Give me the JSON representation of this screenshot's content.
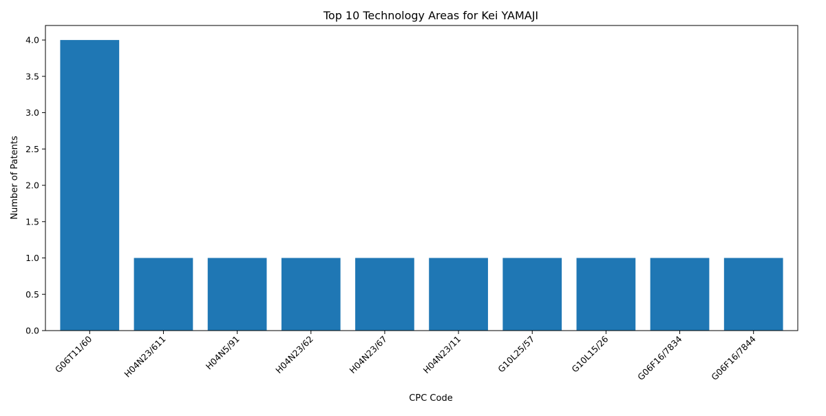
{
  "chart_data": {
    "type": "bar",
    "title": "Top 10 Technology Areas for Kei YAMAJI",
    "xlabel": "CPC Code",
    "ylabel": "Number of Patents",
    "categories": [
      "G06T11/60",
      "H04N23/611",
      "H04N5/91",
      "H04N23/62",
      "H04N23/67",
      "H04N23/11",
      "G10L25/57",
      "G10L15/26",
      "G06F16/7834",
      "G06F16/7844"
    ],
    "values": [
      4,
      1,
      1,
      1,
      1,
      1,
      1,
      1,
      1,
      1
    ],
    "ylim": [
      0,
      4.2
    ],
    "yticks": [
      "0.0",
      "0.5",
      "1.0",
      "1.5",
      "2.0",
      "2.5",
      "3.0",
      "3.5",
      "4.0"
    ],
    "bar_color": "#1f77b4",
    "grid": false,
    "legend": false
  }
}
